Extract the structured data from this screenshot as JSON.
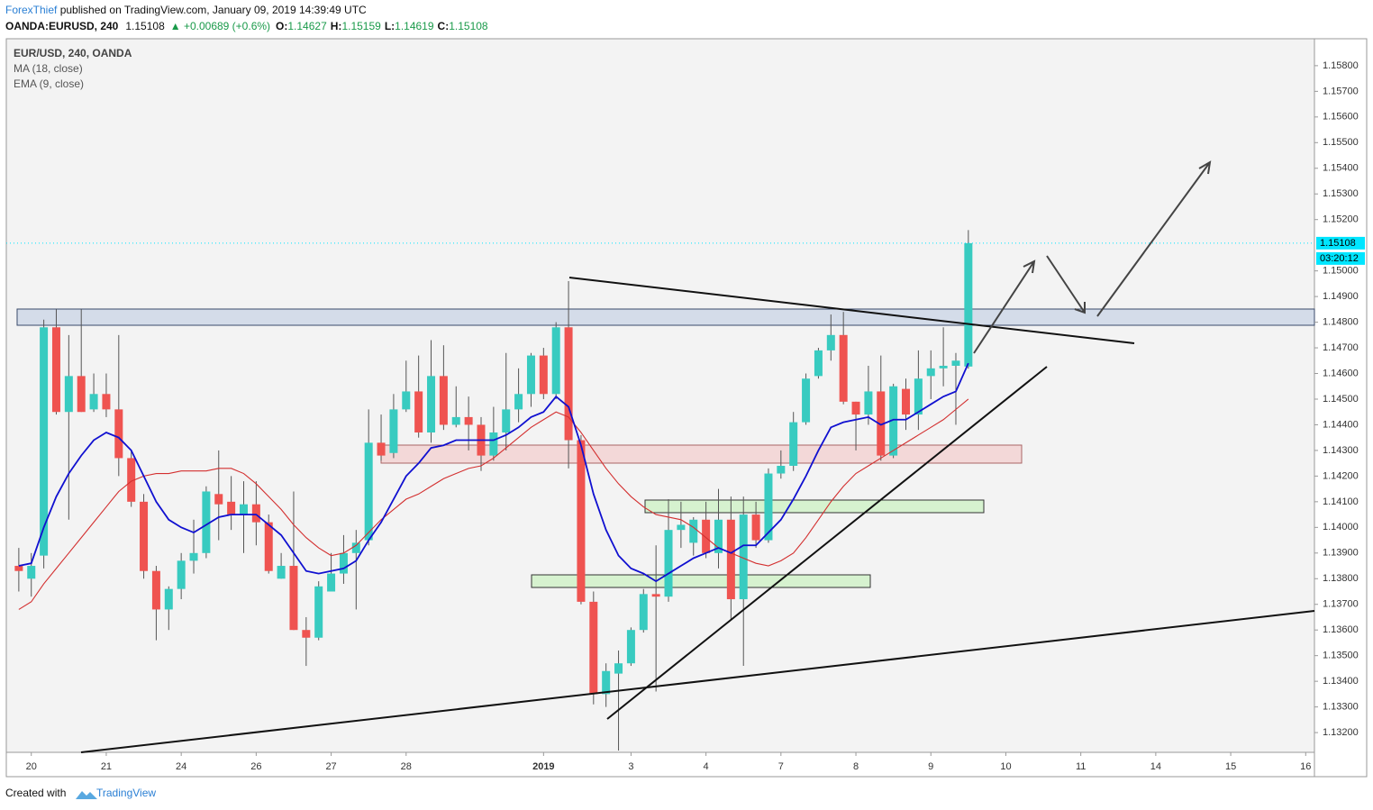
{
  "header": {
    "author": "ForexThief",
    "published": " published on TradingView.com, January 09, 2019 14:39:49 UTC",
    "symbol": "OANDA:EURUSD, 240",
    "price": "1.15108",
    "change": "▲ +0.00689 (+0.6%)",
    "ohlc": [
      {
        "label": "O:",
        "value": "1.14627"
      },
      {
        "label": "H:",
        "value": "1.15159"
      },
      {
        "label": "L:",
        "value": "1.14619"
      },
      {
        "label": "C:",
        "value": "1.15108"
      }
    ]
  },
  "footer": {
    "created": "Created with",
    "brand": "TradingView"
  },
  "chart_data": {
    "type": "candlestick",
    "title": "EUR/USD, 240, OANDA",
    "x": [
      0,
      1,
      2,
      3,
      4,
      5,
      6,
      7,
      8,
      9,
      10,
      11,
      12,
      13,
      14,
      15,
      16,
      17,
      18,
      19,
      20,
      21,
      22,
      23,
      24,
      25,
      26,
      27,
      28,
      29,
      30,
      31,
      32,
      33,
      34,
      35,
      36,
      37,
      38,
      39,
      40,
      41,
      42,
      43,
      44,
      45,
      46,
      47,
      48,
      49,
      50,
      51,
      52,
      53,
      54,
      55,
      56,
      57,
      58,
      59,
      60,
      61,
      62,
      63,
      64,
      65,
      66,
      67,
      68,
      69,
      70,
      71,
      72,
      73,
      74,
      75,
      76
    ],
    "open": [
      1.1385,
      1.138,
      1.1389,
      1.1478,
      1.1445,
      1.1459,
      1.1446,
      1.1452,
      1.1446,
      1.1427,
      1.141,
      1.1383,
      1.1368,
      1.1376,
      1.1387,
      1.139,
      1.1413,
      1.141,
      1.1405,
      1.1409,
      1.1402,
      1.138,
      1.1385,
      1.136,
      1.1357,
      1.1375,
      1.1382,
      1.139,
      1.1395,
      1.1433,
      1.1429,
      1.1446,
      1.1453,
      1.1437,
      1.1459,
      1.144,
      1.1443,
      1.144,
      1.1428,
      1.1437,
      1.1446,
      1.1452,
      1.1467,
      1.1452,
      1.1478,
      1.1434,
      1.1371,
      1.1335,
      1.1343,
      1.1347,
      1.136,
      1.1374,
      1.1373,
      1.1399,
      1.1394,
      1.1403,
      1.139,
      1.1403,
      1.1372,
      1.1405,
      1.1395,
      1.1421,
      1.1424,
      1.1441,
      1.1459,
      1.1469,
      1.1475,
      1.1449,
      1.1444,
      1.1453,
      1.1428,
      1.1454,
      1.1444,
      1.1459,
      1.1462,
      1.1463,
      1.14627
    ],
    "high": [
      1.1392,
      1.139,
      1.1481,
      1.1485,
      1.1475,
      1.1485,
      1.146,
      1.146,
      1.1475,
      1.143,
      1.1413,
      1.1385,
      1.1377,
      1.139,
      1.1403,
      1.1416,
      1.143,
      1.142,
      1.1418,
      1.1418,
      1.1405,
      1.139,
      1.1414,
      1.1365,
      1.1379,
      1.139,
      1.1397,
      1.1399,
      1.1446,
      1.1444,
      1.1452,
      1.1465,
      1.1467,
      1.1473,
      1.1471,
      1.1455,
      1.1451,
      1.1443,
      1.1447,
      1.1468,
      1.1462,
      1.1468,
      1.147,
      1.148,
      1.1496,
      1.1436,
      1.1375,
      1.1347,
      1.1352,
      1.1361,
      1.1376,
      1.1393,
      1.1411,
      1.141,
      1.1404,
      1.141,
      1.1415,
      1.1412,
      1.1412,
      1.141,
      1.1423,
      1.143,
      1.1445,
      1.146,
      1.147,
      1.1483,
      1.1484,
      1.1449,
      1.1463,
      1.1467,
      1.1456,
      1.1458,
      1.1469,
      1.1469,
      1.1478,
      1.1468,
      1.15159
    ],
    "low": [
      1.1375,
      1.1373,
      1.1384,
      1.1444,
      1.1403,
      1.1445,
      1.1445,
      1.1443,
      1.142,
      1.1408,
      1.138,
      1.1356,
      1.136,
      1.1372,
      1.1382,
      1.1388,
      1.1395,
      1.1399,
      1.139,
      1.1393,
      1.1382,
      1.138,
      1.136,
      1.1346,
      1.1356,
      1.1375,
      1.1378,
      1.1368,
      1.1393,
      1.1426,
      1.1427,
      1.1445,
      1.1435,
      1.1433,
      1.1438,
      1.1439,
      1.143,
      1.1422,
      1.1426,
      1.143,
      1.1441,
      1.1447,
      1.145,
      1.145,
      1.1423,
      1.137,
      1.1331,
      1.133,
      1.1313,
      1.1346,
      1.1359,
      1.1336,
      1.1371,
      1.1392,
      1.1389,
      1.1388,
      1.1384,
      1.1364,
      1.1346,
      1.1392,
      1.1394,
      1.1419,
      1.1422,
      1.144,
      1.1458,
      1.1465,
      1.1448,
      1.143,
      1.144,
      1.1426,
      1.1427,
      1.1438,
      1.1438,
      1.145,
      1.1455,
      1.144,
      1.14619
    ],
    "close": [
      1.1383,
      1.1385,
      1.1478,
      1.1445,
      1.1459,
      1.1445,
      1.1452,
      1.1446,
      1.1427,
      1.141,
      1.1383,
      1.1368,
      1.1376,
      1.1387,
      1.139,
      1.1414,
      1.1409,
      1.1405,
      1.1409,
      1.1402,
      1.1383,
      1.1385,
      1.136,
      1.1357,
      1.1377,
      1.1382,
      1.139,
      1.1394,
      1.1433,
      1.1428,
      1.1446,
      1.1453,
      1.1437,
      1.1459,
      1.144,
      1.1443,
      1.144,
      1.1428,
      1.1437,
      1.1446,
      1.1452,
      1.1467,
      1.1452,
      1.1478,
      1.1434,
      1.1371,
      1.1335,
      1.1344,
      1.1347,
      1.136,
      1.1374,
      1.1373,
      1.1399,
      1.1401,
      1.1403,
      1.139,
      1.1403,
      1.1372,
      1.1405,
      1.1395,
      1.1421,
      1.1424,
      1.1441,
      1.1458,
      1.1469,
      1.1475,
      1.1449,
      1.1444,
      1.1453,
      1.1428,
      1.1455,
      1.1444,
      1.1458,
      1.1462,
      1.1463,
      1.1465,
      1.15108
    ],
    "up_color": "#38cbc0",
    "down_color": "#ef5350",
    "lines": [
      {
        "name": "MA (18, close)",
        "color": "#d32f2f",
        "values": [
          1.1368,
          1.1371,
          1.1378,
          1.1384,
          1.139,
          1.1396,
          1.1402,
          1.1408,
          1.1414,
          1.1418,
          1.142,
          1.1421,
          1.1421,
          1.1422,
          1.1422,
          1.1422,
          1.1423,
          1.1423,
          1.1421,
          1.1417,
          1.1412,
          1.1407,
          1.1401,
          1.1396,
          1.1392,
          1.1389,
          1.139,
          1.1393,
          1.1398,
          1.1403,
          1.1407,
          1.1411,
          1.1413,
          1.1416,
          1.1419,
          1.1421,
          1.1423,
          1.1424,
          1.1427,
          1.1431,
          1.1435,
          1.1439,
          1.1442,
          1.1445,
          1.1443,
          1.1437,
          1.143,
          1.1423,
          1.1417,
          1.1412,
          1.1408,
          1.1405,
          1.1404,
          1.1403,
          1.14,
          1.1396,
          1.1392,
          1.139,
          1.1388,
          1.1386,
          1.1385,
          1.1387,
          1.139,
          1.1396,
          1.1403,
          1.141,
          1.1416,
          1.1421,
          1.1424,
          1.1427,
          1.143,
          1.1433,
          1.1436,
          1.1439,
          1.1442,
          1.1446,
          1.145
        ]
      },
      {
        "name": "EMA (9, close)",
        "color": "#1010d0",
        "values": [
          1.1385,
          1.1386,
          1.14,
          1.1412,
          1.1421,
          1.1428,
          1.1434,
          1.1437,
          1.1435,
          1.143,
          1.142,
          1.141,
          1.1403,
          1.14,
          1.1398,
          1.1401,
          1.1404,
          1.1405,
          1.1405,
          1.1405,
          1.1401,
          1.1397,
          1.139,
          1.1383,
          1.1382,
          1.1383,
          1.1384,
          1.1387,
          1.1395,
          1.1402,
          1.1411,
          1.142,
          1.1425,
          1.1431,
          1.1432,
          1.1434,
          1.1434,
          1.1434,
          1.1434,
          1.1436,
          1.1439,
          1.1443,
          1.1445,
          1.1451,
          1.1447,
          1.1432,
          1.1413,
          1.1399,
          1.1389,
          1.1384,
          1.1382,
          1.1379,
          1.1382,
          1.1385,
          1.1388,
          1.139,
          1.1392,
          1.139,
          1.1393,
          1.1393,
          1.1398,
          1.1403,
          1.1411,
          1.142,
          1.143,
          1.1439,
          1.1441,
          1.1442,
          1.1443,
          1.144,
          1.1442,
          1.1442,
          1.1445,
          1.1448,
          1.1451,
          1.1453,
          1.1464
        ]
      }
    ],
    "xlim": [
      -1,
      103.7
    ],
    "xticks": [
      {
        "value": 1,
        "label": "20"
      },
      {
        "value": 7,
        "label": "21"
      },
      {
        "value": 13,
        "label": "24"
      },
      {
        "value": 19,
        "label": "26"
      },
      {
        "value": 25,
        "label": "27"
      },
      {
        "value": 31,
        "label": "28"
      },
      {
        "value": 42,
        "label": "2019"
      },
      {
        "value": 49,
        "label": "3"
      },
      {
        "value": 55,
        "label": "4"
      },
      {
        "value": 61,
        "label": "7"
      },
      {
        "value": 67,
        "label": "8"
      },
      {
        "value": 73,
        "label": "9"
      },
      {
        "value": 79,
        "label": "10"
      },
      {
        "value": 85,
        "label": "11"
      },
      {
        "value": 91,
        "label": "14"
      },
      {
        "value": 97,
        "label": "15"
      },
      {
        "value": 103,
        "label": "16"
      }
    ],
    "ylim": [
      1.13123,
      1.15905
    ],
    "yticks": [
      {
        "value": 1.158,
        "label": "1.15800"
      },
      {
        "value": 1.157,
        "label": "1.15700"
      },
      {
        "value": 1.156,
        "label": "1.15600"
      },
      {
        "value": 1.155,
        "label": "1.15500"
      },
      {
        "value": 1.154,
        "label": "1.15400"
      },
      {
        "value": 1.153,
        "label": "1.15300"
      },
      {
        "value": 1.152,
        "label": "1.15200"
      },
      {
        "value": 1.15,
        "label": "1.15000"
      },
      {
        "value": 1.149,
        "label": "1.14900"
      },
      {
        "value": 1.148,
        "label": "1.14800"
      },
      {
        "value": 1.147,
        "label": "1.14700"
      },
      {
        "value": 1.146,
        "label": "1.14600"
      },
      {
        "value": 1.145,
        "label": "1.14500"
      },
      {
        "value": 1.144,
        "label": "1.14400"
      },
      {
        "value": 1.143,
        "label": "1.14300"
      },
      {
        "value": 1.142,
        "label": "1.14200"
      },
      {
        "value": 1.141,
        "label": "1.14100"
      },
      {
        "value": 1.14,
        "label": "1.14000"
      },
      {
        "value": 1.139,
        "label": "1.13900"
      },
      {
        "value": 1.138,
        "label": "1.13800"
      },
      {
        "value": 1.137,
        "label": "1.13700"
      },
      {
        "value": 1.136,
        "label": "1.13600"
      },
      {
        "value": 1.135,
        "label": "1.13500"
      },
      {
        "value": 1.134,
        "label": "1.13400"
      },
      {
        "value": 1.133,
        "label": "1.13300"
      },
      {
        "value": 1.132,
        "label": "1.13200"
      }
    ],
    "last_price": {
      "value": 1.15108,
      "label": "1.15108"
    },
    "countdown": "03:20:12",
    "price_line_color": "#00e5ff"
  }
}
